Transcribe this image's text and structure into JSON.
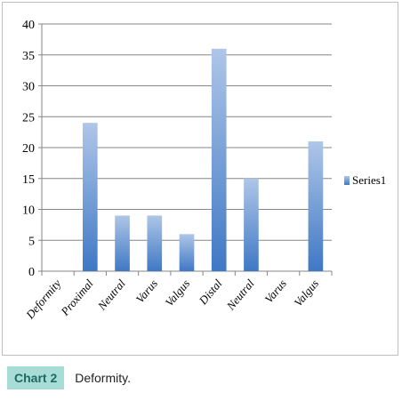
{
  "chart_data": {
    "type": "bar",
    "categories": [
      "Deformity",
      "Proximal",
      "Neutral",
      "Varus",
      "Valgus",
      "Distal",
      "Neutral",
      "Varus",
      "Valgus"
    ],
    "series": [
      {
        "name": "Series1",
        "values": [
          0,
          24,
          9,
          9,
          6,
          36,
          15,
          0,
          21
        ]
      }
    ],
    "ylim": [
      0,
      40
    ],
    "yticks": [
      0,
      5,
      10,
      15,
      20,
      25,
      30,
      35,
      40
    ],
    "grid": true,
    "legend": "right",
    "colors": {
      "bar_top": "#aec6e8",
      "bar_bottom": "#3f78c4",
      "grid": "#868686"
    }
  },
  "caption": {
    "label": "Chart 2",
    "text": "Deformity."
  }
}
